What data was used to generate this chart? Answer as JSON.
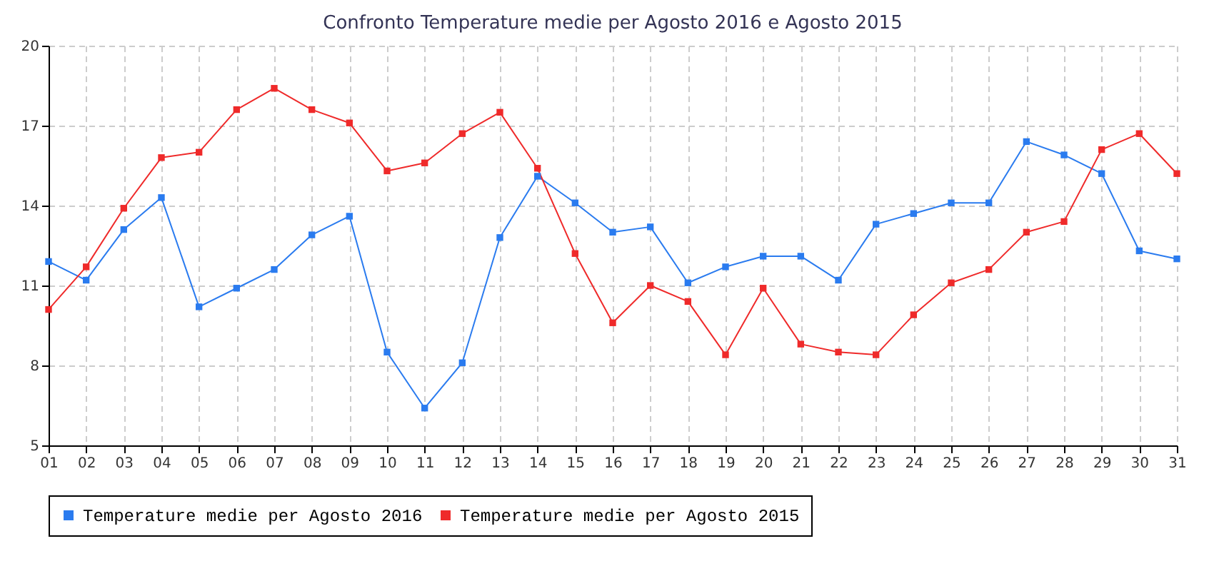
{
  "chart_data": {
    "type": "line",
    "title": "Confronto Temperature medie per Agosto 2016 e Agosto 2015",
    "categories": [
      "01",
      "02",
      "03",
      "04",
      "05",
      "06",
      "07",
      "08",
      "09",
      "10",
      "11",
      "12",
      "13",
      "14",
      "15",
      "16",
      "17",
      "18",
      "19",
      "20",
      "21",
      "22",
      "23",
      "24",
      "25",
      "26",
      "27",
      "28",
      "29",
      "30",
      "31"
    ],
    "series": [
      {
        "name": "Temperature medie per Agosto 2016",
        "color": "#2a7bef",
        "values": [
          11.9,
          11.2,
          13.1,
          14.3,
          10.2,
          10.9,
          11.6,
          12.9,
          13.6,
          8.5,
          6.4,
          8.1,
          12.8,
          15.1,
          14.1,
          13.0,
          13.2,
          11.1,
          11.7,
          12.1,
          12.1,
          11.2,
          13.3,
          13.7,
          14.1,
          14.1,
          16.4,
          15.9,
          15.2,
          12.3,
          12.0
        ]
      },
      {
        "name": "Temperature medie per Agosto 2015",
        "color": "#ef2a2a",
        "values": [
          10.1,
          11.7,
          13.9,
          15.8,
          16.0,
          17.6,
          18.4,
          17.6,
          17.1,
          15.3,
          15.6,
          16.7,
          17.5,
          15.4,
          12.2,
          9.6,
          11.0,
          10.4,
          8.4,
          10.9,
          8.8,
          8.5,
          8.4,
          9.9,
          11.1,
          11.6,
          13.0,
          13.4,
          16.1,
          16.7,
          15.2
        ]
      }
    ],
    "ylim": [
      5,
      20
    ],
    "yticks": [
      5,
      8,
      11,
      14,
      17,
      20
    ],
    "grid": true,
    "legend": "bottom",
    "marker": "square",
    "line_style": "solid"
  }
}
